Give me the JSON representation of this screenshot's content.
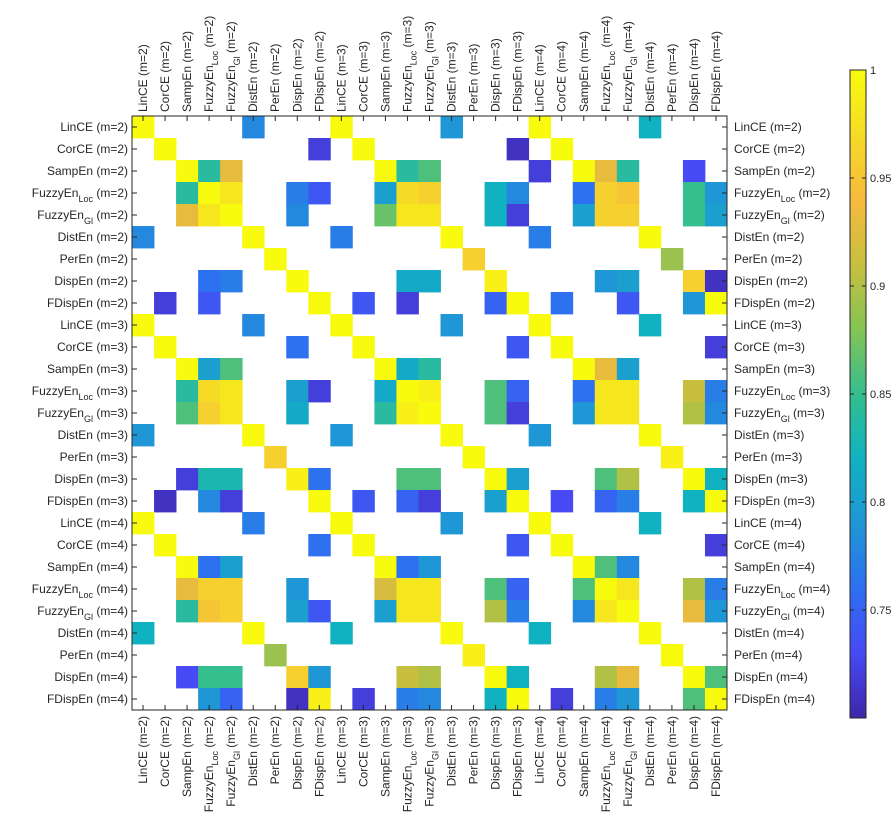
{
  "chart_data": {
    "type": "heatmap",
    "title": "",
    "xlabel": "",
    "ylabel": "",
    "labels": [
      "LinCE (m=2)",
      "CorCE (m=2)",
      "SampEn (m=2)",
      "FuzzyEn_Loc (m=2)",
      "FuzzyEn_Gl (m=2)",
      "DistEn (m=2)",
      "PerEn (m=2)",
      "DispEn (m=2)",
      "FDispEn (m=2)",
      "LinCE (m=3)",
      "CorCE (m=3)",
      "SampEn (m=3)",
      "FuzzyEn_Loc (m=3)",
      "FuzzyEn_Gl (m=3)",
      "DistEn (m=3)",
      "PerEn (m=3)",
      "DispEn (m=3)",
      "FDispEn (m=3)",
      "LinCE (m=4)",
      "CorCE (m=4)",
      "SampEn (m=4)",
      "FuzzyEn_Loc (m=4)",
      "FuzzyEn_Gl (m=4)",
      "DistEn (m=4)",
      "PerEn (m=4)",
      "DispEn (m=4)",
      "FDispEn (m=4)"
    ],
    "colorbar": {
      "range": [
        0.7,
        1
      ],
      "ticks": [
        "0.75",
        "0.8",
        "0.85",
        "0.9",
        "0.95",
        "1"
      ]
    },
    "values": [
      [
        1,
        null,
        null,
        null,
        null,
        0.78,
        null,
        null,
        null,
        1,
        null,
        null,
        null,
        null,
        0.79,
        null,
        null,
        null,
        1,
        null,
        null,
        null,
        null,
        0.82,
        null,
        null,
        null
      ],
      [
        null,
        1,
        null,
        null,
        null,
        null,
        null,
        null,
        0.72,
        null,
        1,
        null,
        null,
        null,
        null,
        null,
        null,
        0.71,
        null,
        1,
        null,
        null,
        null,
        null,
        null,
        null,
        null
      ],
      [
        null,
        null,
        1,
        0.84,
        0.93,
        null,
        null,
        null,
        null,
        null,
        null,
        1,
        0.84,
        0.86,
        null,
        null,
        null,
        null,
        0.72,
        null,
        1,
        0.93,
        0.84,
        null,
        null,
        0.73,
        null
      ],
      [
        null,
        null,
        0.84,
        1,
        0.98,
        null,
        null,
        0.77,
        0.74,
        null,
        null,
        0.8,
        0.97,
        0.96,
        null,
        null,
        0.82,
        0.78,
        null,
        null,
        0.76,
        0.96,
        0.95,
        null,
        null,
        0.85,
        0.79
      ],
      [
        null,
        null,
        0.93,
        0.98,
        1,
        null,
        null,
        0.78,
        null,
        null,
        null,
        0.87,
        0.98,
        0.98,
        null,
        null,
        0.82,
        0.72,
        null,
        null,
        0.8,
        0.96,
        0.96,
        null,
        null,
        0.85,
        0.8
      ],
      [
        0.78,
        null,
        null,
        null,
        null,
        1,
        null,
        null,
        null,
        0.77,
        null,
        null,
        null,
        null,
        1,
        null,
        null,
        null,
        0.77,
        null,
        null,
        null,
        null,
        1,
        null,
        null,
        null
      ],
      [
        null,
        null,
        null,
        null,
        null,
        null,
        1,
        null,
        null,
        null,
        null,
        null,
        null,
        null,
        null,
        0.96,
        null,
        null,
        null,
        null,
        null,
        null,
        null,
        null,
        0.89,
        null,
        null
      ],
      [
        null,
        null,
        null,
        0.76,
        0.77,
        null,
        null,
        1,
        null,
        null,
        null,
        null,
        0.81,
        0.81,
        null,
        null,
        0.99,
        null,
        null,
        null,
        null,
        0.79,
        0.8,
        null,
        null,
        0.96,
        0.71
      ],
      [
        null,
        0.72,
        null,
        0.74,
        null,
        null,
        null,
        null,
        1,
        null,
        0.74,
        null,
        0.72,
        null,
        null,
        null,
        0.75,
        1,
        null,
        0.76,
        null,
        null,
        0.74,
        null,
        null,
        0.79,
        1
      ],
      [
        1,
        null,
        null,
        null,
        null,
        0.78,
        null,
        null,
        null,
        1,
        null,
        null,
        null,
        null,
        0.79,
        null,
        null,
        null,
        1,
        null,
        null,
        null,
        null,
        0.82,
        null,
        null,
        null
      ],
      [
        null,
        1,
        null,
        null,
        null,
        null,
        null,
        0.76,
        null,
        null,
        1,
        null,
        null,
        null,
        null,
        null,
        null,
        0.74,
        null,
        1,
        null,
        null,
        null,
        null,
        null,
        null,
        0.72
      ],
      [
        null,
        null,
        1,
        0.8,
        0.86,
        null,
        null,
        null,
        null,
        null,
        null,
        1,
        0.81,
        0.84,
        null,
        null,
        null,
        null,
        null,
        null,
        1,
        0.93,
        0.8,
        null,
        null,
        null,
        null
      ],
      [
        null,
        null,
        0.84,
        0.97,
        0.98,
        null,
        null,
        0.8,
        0.72,
        null,
        null,
        0.81,
        1,
        0.99,
        null,
        null,
        0.86,
        0.75,
        null,
        null,
        0.76,
        0.98,
        0.98,
        null,
        null,
        0.91,
        0.77
      ],
      [
        null,
        null,
        0.86,
        0.96,
        0.98,
        null,
        null,
        0.81,
        null,
        null,
        null,
        0.84,
        0.99,
        1,
        null,
        null,
        0.86,
        0.72,
        null,
        null,
        0.79,
        0.98,
        0.98,
        null,
        null,
        0.9,
        0.78
      ],
      [
        0.79,
        null,
        null,
        null,
        null,
        1,
        null,
        null,
        null,
        0.79,
        null,
        null,
        null,
        null,
        1,
        null,
        null,
        null,
        0.79,
        null,
        null,
        null,
        null,
        1,
        null,
        null,
        null
      ],
      [
        null,
        null,
        null,
        null,
        null,
        null,
        0.96,
        null,
        null,
        null,
        null,
        null,
        null,
        null,
        null,
        1,
        null,
        null,
        null,
        null,
        null,
        null,
        null,
        null,
        0.99,
        null,
        null
      ],
      [
        null,
        null,
        0.72,
        0.83,
        0.83,
        null,
        null,
        0.99,
        0.76,
        null,
        null,
        null,
        0.86,
        0.86,
        null,
        null,
        1,
        0.8,
        null,
        null,
        null,
        0.86,
        0.9,
        null,
        null,
        1,
        0.82
      ],
      [
        null,
        0.71,
        null,
        0.78,
        0.72,
        null,
        null,
        null,
        1,
        null,
        0.74,
        null,
        0.75,
        0.72,
        null,
        null,
        0.8,
        1,
        null,
        0.73,
        null,
        0.75,
        0.77,
        null,
        null,
        0.82,
        1
      ],
      [
        1,
        null,
        null,
        null,
        null,
        0.77,
        null,
        null,
        null,
        1,
        null,
        null,
        null,
        null,
        0.79,
        null,
        null,
        null,
        1,
        null,
        null,
        null,
        null,
        0.82,
        null,
        null,
        null
      ],
      [
        null,
        1,
        null,
        null,
        null,
        null,
        null,
        null,
        0.76,
        null,
        1,
        null,
        null,
        null,
        null,
        null,
        null,
        0.74,
        null,
        1,
        null,
        null,
        null,
        null,
        null,
        null,
        0.72
      ],
      [
        null,
        null,
        1,
        0.76,
        0.8,
        null,
        null,
        null,
        null,
        null,
        null,
        1,
        0.76,
        0.79,
        null,
        null,
        null,
        null,
        null,
        null,
        1,
        0.86,
        0.78,
        null,
        null,
        null,
        null
      ],
      [
        null,
        null,
        0.93,
        0.96,
        0.96,
        null,
        null,
        0.79,
        null,
        null,
        null,
        0.92,
        0.98,
        0.98,
        null,
        null,
        0.86,
        0.75,
        null,
        null,
        0.86,
        1,
        0.98,
        null,
        null,
        0.9,
        0.77
      ],
      [
        null,
        null,
        0.84,
        0.95,
        0.96,
        null,
        null,
        0.8,
        0.74,
        null,
        null,
        0.8,
        0.98,
        0.98,
        null,
        null,
        0.9,
        0.77,
        null,
        null,
        0.78,
        0.98,
        1,
        null,
        null,
        0.93,
        0.79
      ],
      [
        0.82,
        null,
        null,
        null,
        null,
        1,
        null,
        null,
        null,
        0.82,
        null,
        null,
        null,
        null,
        1,
        null,
        null,
        null,
        0.82,
        null,
        null,
        null,
        null,
        1,
        null,
        null,
        null
      ],
      [
        null,
        null,
        null,
        null,
        null,
        null,
        0.89,
        null,
        null,
        null,
        null,
        null,
        null,
        null,
        null,
        0.99,
        null,
        null,
        null,
        null,
        null,
        null,
        null,
        null,
        1,
        null,
        null
      ],
      [
        null,
        null,
        0.73,
        0.85,
        0.85,
        null,
        null,
        0.96,
        0.79,
        null,
        null,
        null,
        0.91,
        0.9,
        null,
        null,
        1,
        0.82,
        null,
        null,
        null,
        0.9,
        0.93,
        null,
        null,
        1,
        0.86
      ],
      [
        null,
        null,
        null,
        0.79,
        0.75,
        null,
        null,
        0.71,
        0.99,
        null,
        0.72,
        null,
        0.77,
        0.78,
        null,
        null,
        0.82,
        1,
        null,
        0.72,
        null,
        0.77,
        0.79,
        null,
        null,
        0.86,
        1
      ]
    ]
  }
}
